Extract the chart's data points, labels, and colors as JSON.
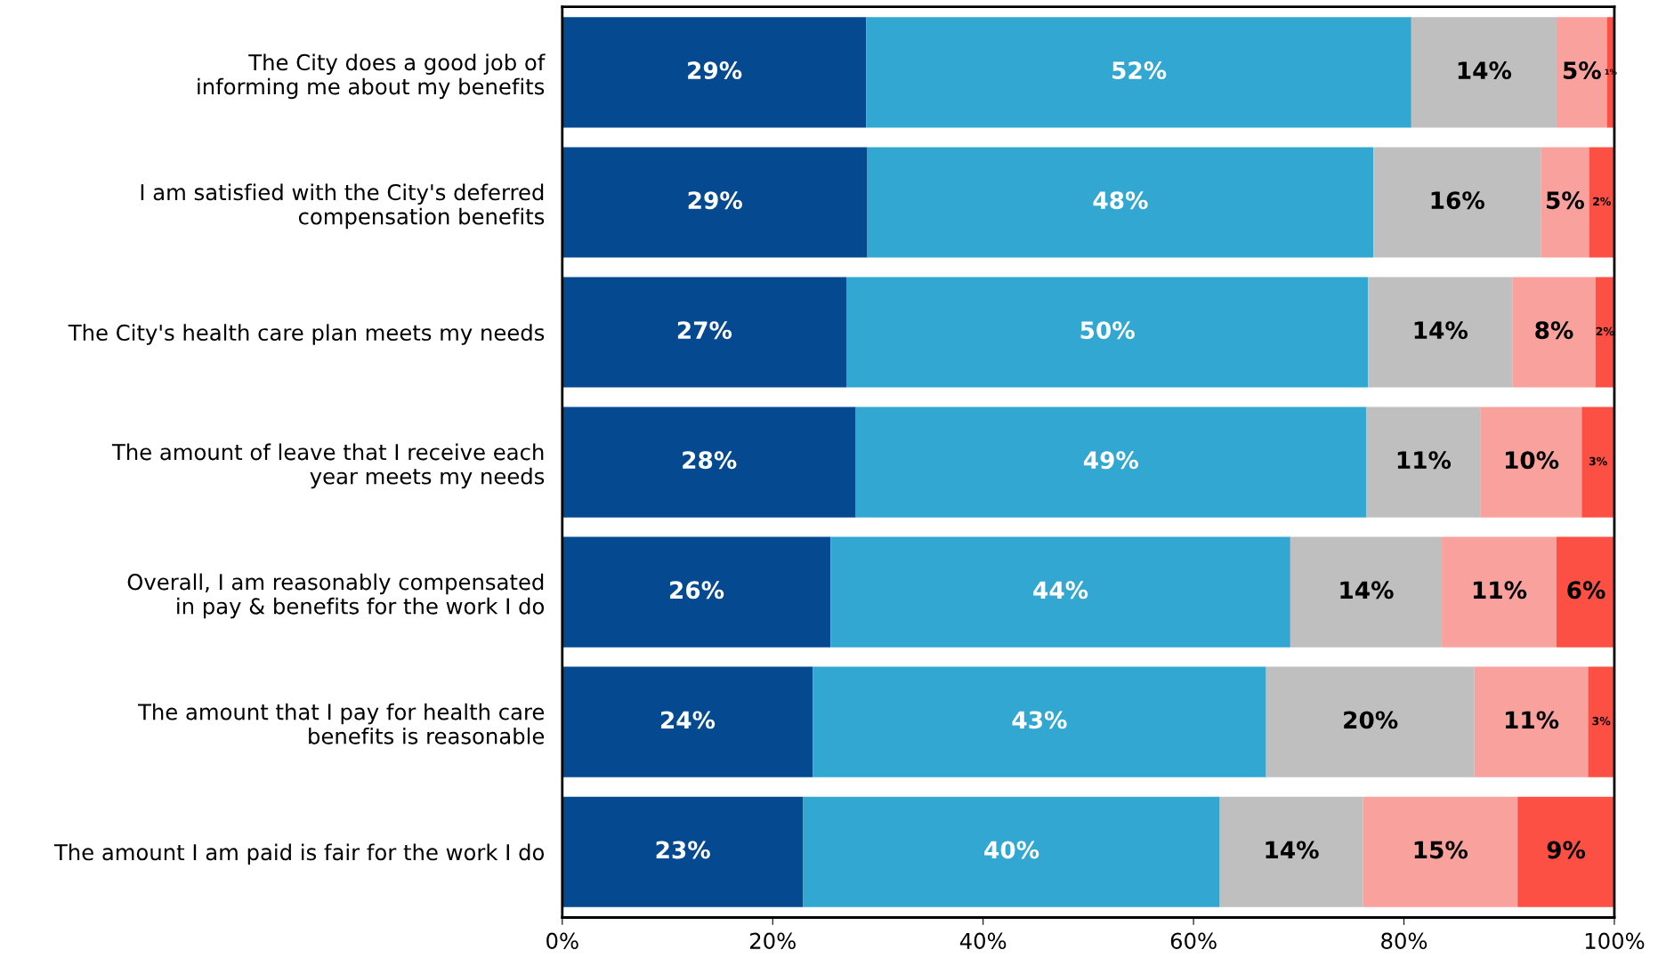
{
  "chart_data": {
    "type": "bar",
    "orientation": "horizontal",
    "stacked": true,
    "categories": [
      "The City does a good job of\ninforming me about my benefits",
      "I am satisfied with the City's deferred\ncompensation benefits",
      "The City's health care plan meets my needs",
      "The amount of leave that I receive each\nyear meets my needs",
      "Overall, I am reasonably compensated\nin pay & benefits for the work I do",
      "The amount that I pay for health care\nbenefits is reasonable",
      "The amount I am paid is fair for the work I do"
    ],
    "series": [
      {
        "color": "#054a91",
        "values": [
          28.9,
          29.0,
          27.0,
          27.9,
          25.5,
          23.8,
          22.9
        ],
        "value_labels": [
          "29%",
          "29%",
          "27%",
          "28%",
          "26%",
          "24%",
          "23%"
        ]
      },
      {
        "color": "#31a7d1",
        "values": [
          51.8,
          48.1,
          49.6,
          48.5,
          43.7,
          43.1,
          39.6
        ],
        "value_labels": [
          "52%",
          "48%",
          "50%",
          "49%",
          "44%",
          "43%",
          "40%"
        ]
      },
      {
        "color": "#bfbfbf",
        "values": [
          13.8,
          15.9,
          13.7,
          10.9,
          14.4,
          19.8,
          13.6
        ],
        "value_labels": [
          "14%",
          "16%",
          "14%",
          "11%",
          "14%",
          "20%",
          "14%"
        ]
      },
      {
        "color": "#f9a19d",
        "values": [
          4.8,
          4.6,
          7.9,
          9.6,
          10.9,
          10.8,
          14.7
        ],
        "value_labels": [
          "5%",
          "5%",
          "8%",
          "10%",
          "11%",
          "11%",
          "15%"
        ]
      },
      {
        "color": "#fc5045",
        "values": [
          0.7,
          2.4,
          1.8,
          3.1,
          5.6,
          2.5,
          9.2
        ],
        "value_labels": [
          "1%",
          "2%",
          "2%",
          "3%",
          "6%",
          "3%",
          "9%"
        ]
      }
    ],
    "xlim": [
      0,
      100
    ],
    "xticks": [
      {
        "value": 0,
        "label": "0%"
      },
      {
        "value": 20,
        "label": "20%"
      },
      {
        "value": 40,
        "label": "40%"
      },
      {
        "value": 60,
        "label": "60%"
      },
      {
        "value": 80,
        "label": "80%"
      },
      {
        "value": 100,
        "label": "100%"
      }
    ],
    "grid": false
  }
}
